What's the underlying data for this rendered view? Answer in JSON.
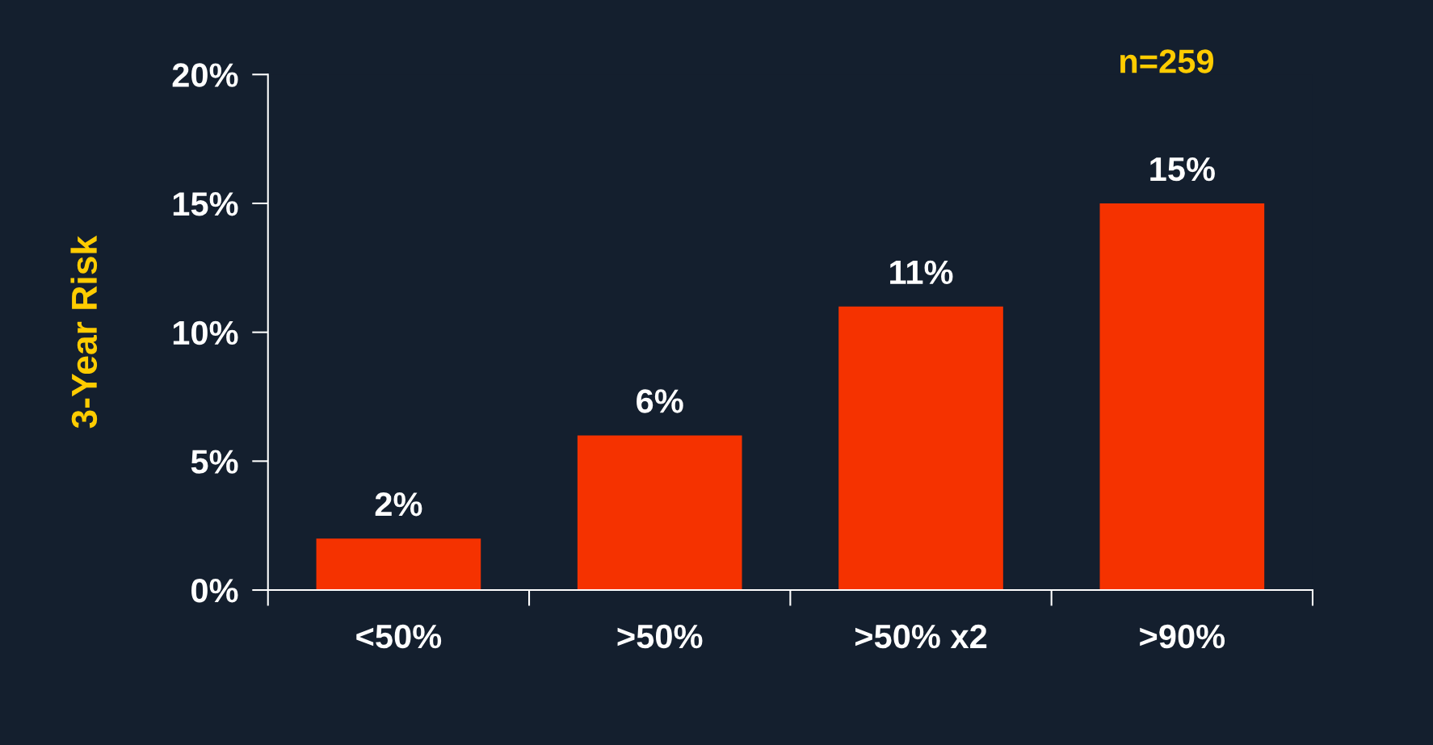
{
  "chart_data": {
    "type": "bar",
    "ylabel": "3-Year Risk",
    "categories": [
      "<50%",
      ">50%",
      ">50% x2",
      ">90%"
    ],
    "values": [
      2,
      6,
      11,
      15
    ],
    "value_labels": [
      "2%",
      "6%",
      "11%",
      "15%"
    ],
    "color": "#f53200",
    "ylim": [
      0,
      20
    ],
    "yticks": [
      {
        "value": 0,
        "label": "0%"
      },
      {
        "value": 5,
        "label": "5%"
      },
      {
        "value": 10,
        "label": "10%"
      },
      {
        "value": 15,
        "label": "15%"
      },
      {
        "value": 20,
        "label": "20%"
      }
    ],
    "annotations": [
      "n=259"
    ],
    "grid": false,
    "legend": false
  }
}
